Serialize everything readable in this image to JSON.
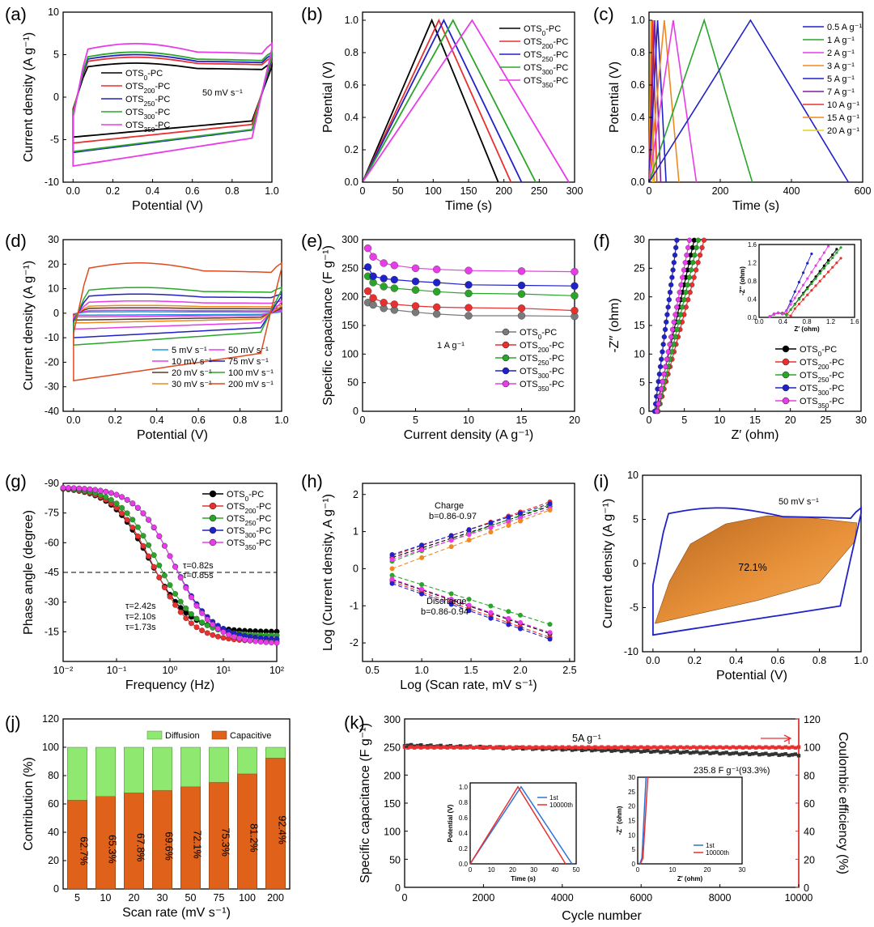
{
  "chart_data": [
    {
      "id": "a",
      "panel_label": "(a)",
      "type": "line",
      "xlabel": "Potential (V)",
      "ylabel": "Current density (A g⁻¹)",
      "xlim": [
        -0.05,
        1.0
      ],
      "ylim": [
        -10,
        10
      ],
      "xticks": [
        "0.0",
        "0.2",
        "0.4",
        "0.6",
        "0.8",
        "1.0"
      ],
      "yticks": [
        "-10",
        "-5",
        "0",
        "5",
        "10"
      ],
      "annotation": "50 mV s⁻¹",
      "series": [
        {
          "name": "OTS0-PC",
          "color": "#000000",
          "top": 4.0,
          "bottom": -4.7
        },
        {
          "name": "OTS200-PC",
          "color": "#e8312f",
          "top": 4.7,
          "bottom": -5.4
        },
        {
          "name": "OTS250-PC",
          "color": "#2121c8",
          "top": 5.0,
          "bottom": -6.5
        },
        {
          "name": "OTS300-PC",
          "color": "#2aa52a",
          "top": 5.3,
          "bottom": -6.4
        },
        {
          "name": "OTS350-PC",
          "color": "#e83ce8",
          "top": 6.3,
          "bottom": -8.1
        }
      ]
    },
    {
      "id": "b",
      "panel_label": "(b)",
      "type": "line",
      "xlabel": "Time (s)",
      "ylabel": "Potential (V)",
      "xlim": [
        0,
        300
      ],
      "ylim": [
        0,
        1.05
      ],
      "xticks": [
        "0",
        "50",
        "100",
        "150",
        "200",
        "250",
        "300"
      ],
      "yticks": [
        "0.0",
        "0.2",
        "0.4",
        "0.6",
        "0.8",
        "1.0"
      ],
      "series": [
        {
          "name": "OTS0-PC",
          "color": "#000000",
          "peak_t": 98,
          "end_t": 192
        },
        {
          "name": "OTS200-PC",
          "color": "#e8312f",
          "peak_t": 108,
          "end_t": 210
        },
        {
          "name": "OTS250-PC",
          "color": "#2121c8",
          "peak_t": 115,
          "end_t": 225
        },
        {
          "name": "OTS300-PC",
          "color": "#2aa52a",
          "peak_t": 128,
          "end_t": 245
        },
        {
          "name": "OTS350-PC",
          "color": "#e83ce8",
          "peak_t": 155,
          "end_t": 292
        }
      ]
    },
    {
      "id": "c",
      "panel_label": "(c)",
      "type": "line",
      "xlabel": "Time (s)",
      "ylabel": "Potential (V)",
      "xlim": [
        0,
        600
      ],
      "ylim": [
        0,
        1.05
      ],
      "xticks": [
        "0",
        "200",
        "400",
        "600"
      ],
      "yticks": [
        "0.0",
        "0.2",
        "0.4",
        "0.6",
        "0.8",
        "1.0"
      ],
      "series": [
        {
          "name": "0.5 A g⁻¹",
          "color": "#2121c8",
          "peak_t": 285,
          "end_t": 560
        },
        {
          "name": "1 A g⁻¹",
          "color": "#2aa52a",
          "peak_t": 155,
          "end_t": 290
        },
        {
          "name": "2 A g⁻¹",
          "color": "#e83ce8",
          "peak_t": 68,
          "end_t": 133
        },
        {
          "name": "3 A g⁻¹",
          "color": "#ee8a1e",
          "peak_t": 43,
          "end_t": 84
        },
        {
          "name": "5 A g⁻¹",
          "color": "#2121c8",
          "peak_t": 24,
          "end_t": 48
        },
        {
          "name": "7 A g⁻¹",
          "color": "#7a1fa0",
          "peak_t": 16,
          "end_t": 33
        },
        {
          "name": "10 A g⁻¹",
          "color": "#e8312f",
          "peak_t": 11,
          "end_t": 22
        },
        {
          "name": "15 A g⁻¹",
          "color": "#ee8a1e",
          "peak_t": 7,
          "end_t": 14
        },
        {
          "name": "20 A g⁻¹",
          "color": "#e8d21e",
          "peak_t": 5,
          "end_t": 10
        }
      ]
    },
    {
      "id": "d",
      "panel_label": "(d)",
      "type": "line",
      "xlabel": "Potential (V)",
      "ylabel": "Current density (A g⁻¹)",
      "xlim": [
        -0.05,
        1.0
      ],
      "ylim": [
        -40,
        30
      ],
      "xticks": [
        "0.0",
        "0.2",
        "0.4",
        "0.6",
        "0.8",
        "1.0"
      ],
      "yticks": [
        "-40",
        "-30",
        "-20",
        "-10",
        "0",
        "10",
        "20",
        "30"
      ],
      "series": [
        {
          "name": "5 mV s⁻¹",
          "color": "#1e9ae0",
          "top": 0.6,
          "bottom": -0.8
        },
        {
          "name": "10 mV s⁻¹",
          "color": "#e83ce8",
          "top": 1.2,
          "bottom": -1.5
        },
        {
          "name": "20 mV s⁻¹",
          "color": "#5a3a2a",
          "top": 2.2,
          "bottom": -2.8
        },
        {
          "name": "30 mV s⁻¹",
          "color": "#ee8a1e",
          "top": 3.2,
          "bottom": -4.0
        },
        {
          "name": "50 mV s⁻¹",
          "color": "#e83ce8",
          "top": 5.0,
          "bottom": -6.5
        },
        {
          "name": "75 mV s⁻¹",
          "color": "#2121c8",
          "top": 7.8,
          "bottom": -10.0
        },
        {
          "name": "100 mV s⁻¹",
          "color": "#2aa52a",
          "top": 10.5,
          "bottom": -13.0
        },
        {
          "name": "200 mV s⁻¹",
          "color": "#e04a1e",
          "top": 20.5,
          "bottom": -27.5
        }
      ]
    },
    {
      "id": "e",
      "panel_label": "(e)",
      "type": "line",
      "xlabel": "Current density (A g⁻¹)",
      "ylabel": "Specific capacitance (F g⁻¹)",
      "xlim": [
        0,
        20
      ],
      "ylim": [
        0,
        300
      ],
      "xticks": [
        "0",
        "5",
        "10",
        "15",
        "20"
      ],
      "yticks": [
        "0",
        "50",
        "100",
        "150",
        "200",
        "250",
        "300"
      ],
      "annotation": "1 A g⁻¹",
      "x": [
        0.5,
        1,
        2,
        3,
        5,
        7,
        10,
        15,
        20
      ],
      "series": [
        {
          "name": "OTS0-PC",
          "color": "#7a7a7a",
          "values": [
            190,
            186,
            180,
            177,
            173,
            170,
            167,
            167,
            166
          ]
        },
        {
          "name": "OTS200-PC",
          "color": "#e8312f",
          "values": [
            210,
            198,
            190,
            187,
            184,
            182,
            181,
            180,
            176
          ]
        },
        {
          "name": "OTS250-PC",
          "color": "#2aa52a",
          "values": [
            236,
            225,
            218,
            215,
            212,
            209,
            206,
            205,
            202
          ]
        },
        {
          "name": "OTS300-PC",
          "color": "#2121c8",
          "values": [
            252,
            236,
            232,
            230,
            227,
            225,
            221,
            220,
            219
          ]
        },
        {
          "name": "OTS350-PC",
          "color": "#e83ce8",
          "values": [
            285,
            270,
            259,
            255,
            250,
            248,
            246,
            245,
            244
          ]
        }
      ]
    },
    {
      "id": "f",
      "panel_label": "(f)",
      "type": "scatter",
      "xlabel": "Z′ (ohm)",
      "ylabel": "-Z′′ (ohm)",
      "xlim": [
        0,
        30
      ],
      "ylim": [
        0,
        30
      ],
      "xticks": [
        "0",
        "5",
        "10",
        "15",
        "20",
        "25",
        "30"
      ],
      "yticks": [
        "0",
        "5",
        "10",
        "15",
        "20",
        "25",
        "30"
      ],
      "inset": {
        "xlabel": "Z′ (ohm)",
        "ylabel": "-Z′′ (ohm)",
        "xticks": [
          "0.0",
          "0.4",
          "0.8",
          "1.2",
          "1.6"
        ],
        "yticks": [
          "0.0",
          "0.4",
          "0.8",
          "1.2",
          "1.6"
        ]
      },
      "series": [
        {
          "name": "OTS0-PC",
          "color": "#000000",
          "rs": 0.25,
          "knee": 0.7,
          "slope": 5.5
        },
        {
          "name": "OTS200-PC",
          "color": "#e8312f",
          "rs": 0.3,
          "knee": 0.9,
          "slope": 4.6
        },
        {
          "name": "OTS250-PC",
          "color": "#2aa52a",
          "rs": 0.25,
          "knee": 0.8,
          "slope": 5.2
        },
        {
          "name": "OTS300-PC",
          "color": "#2121c8",
          "rs": 0.2,
          "knee": 0.35,
          "slope": 9.5
        },
        {
          "name": "OTS350-PC",
          "color": "#e83ce8",
          "rs": 0.2,
          "knee": 0.6,
          "slope": 6.5
        }
      ]
    },
    {
      "id": "g",
      "panel_label": "(g)",
      "type": "scatter",
      "xlabel": "Frequency (Hz)",
      "ylabel": "Phase angle (degree)",
      "xscale": "log",
      "xlim": [
        0.01,
        100
      ],
      "ylim": [
        -90,
        0
      ],
      "xticks": [
        "10⁻²",
        "10⁻¹",
        "10⁰",
        "10¹",
        "10²"
      ],
      "yticks": [
        "-90",
        "-75",
        "-60",
        "-45",
        "-30",
        "-15"
      ],
      "annotations": [
        "τ=0.82s",
        "τ=0.85s",
        "τ=2.42s",
        "τ=2.10s",
        "τ=1.73s"
      ],
      "series": [
        {
          "name": "OTS0-PC",
          "color": "#000000",
          "f45": 0.413,
          "hf": -15
        },
        {
          "name": "OTS200-PC",
          "color": "#e8312f",
          "f45": 0.476,
          "hf": -10
        },
        {
          "name": "OTS250-PC",
          "color": "#2aa52a",
          "f45": 0.578,
          "hf": -13
        },
        {
          "name": "OTS300-PC",
          "color": "#2121c8",
          "f45": 1.176,
          "hf": -11
        },
        {
          "name": "OTS350-PC",
          "color": "#e83ce8",
          "f45": 1.22,
          "hf": -9
        }
      ]
    },
    {
      "id": "h",
      "panel_label": "(h)",
      "type": "scatter",
      "xlabel": "Log (Scan rate, mV s⁻¹)",
      "ylabel": "Log (Current density, A g⁻¹)",
      "xlim": [
        0.4,
        2.55
      ],
      "ylim": [
        -2.5,
        2.3
      ],
      "xticks": [
        "0.5",
        "1.0",
        "1.5",
        "2.0",
        "2.5"
      ],
      "yticks": [
        "-2",
        "-1",
        "0",
        "1",
        "2"
      ],
      "charge_label": "Charge",
      "charge_b": "b=0.86-0.97",
      "discharge_label": "Discharge",
      "discharge_b": "b=0.86-0.94",
      "x": [
        0.7,
        1.0,
        1.3,
        1.48,
        1.7,
        1.88,
        2.0,
        2.3
      ],
      "series": [
        {
          "name": "OTS0-PC charge",
          "color": "#000000",
          "y0": 0.3,
          "y1": 1.68
        },
        {
          "name": "OTS200-PC charge",
          "color": "#e8312f",
          "y0": 0.35,
          "y1": 1.8
        },
        {
          "name": "OTS250-PC charge",
          "color": "#2aa52a",
          "y0": 0.2,
          "y1": 1.72
        },
        {
          "name": "OTS300-PC charge",
          "color": "#2121c8",
          "y0": 0.38,
          "y1": 1.75
        },
        {
          "name": "OTS350-PC charge",
          "color": "#e83ce8",
          "y0": 0.25,
          "y1": 1.62
        },
        {
          "name": "orange charge",
          "color": "#ee8a1e",
          "y0": 0.0,
          "y1": 1.58
        },
        {
          "name": "OTS0-PC discharge",
          "color": "#000000",
          "y0": -0.3,
          "y1": -1.75
        },
        {
          "name": "OTS200-PC discharge",
          "color": "#e8312f",
          "y0": -0.35,
          "y1": -1.85
        },
        {
          "name": "OTS250-PC discharge",
          "color": "#2aa52a",
          "y0": -0.18,
          "y1": -1.5
        },
        {
          "name": "OTS300-PC discharge",
          "color": "#2121c8",
          "y0": -0.4,
          "y1": -1.9
        },
        {
          "name": "OTS350-PC discharge",
          "color": "#e83ce8",
          "y0": -0.28,
          "y1": -1.72
        }
      ]
    },
    {
      "id": "i",
      "panel_label": "(i)",
      "type": "area",
      "xlabel": "Potential (V)",
      "ylabel": "Current density (A g⁻¹)",
      "xlim": [
        -0.05,
        1.0
      ],
      "ylim": [
        -10,
        10
      ],
      "xticks": [
        "0.0",
        "0.2",
        "0.4",
        "0.6",
        "0.8",
        "1.0"
      ],
      "yticks": [
        "-10",
        "-5",
        "0",
        "5",
        "10"
      ],
      "annotation": "50 mV s⁻¹",
      "capacitive_label": "72.1%",
      "cv_top": 6.3,
      "cv_bottom": -8.1
    },
    {
      "id": "j",
      "panel_label": "(j)",
      "type": "bar",
      "xlabel": "Scan rate (mV s⁻¹)",
      "ylabel": "Contribution (%)",
      "ylim": [
        0,
        120
      ],
      "yticks": [
        "0",
        "20",
        "40",
        "60",
        "80",
        "100",
        "120"
      ],
      "categories": [
        "5",
        "10",
        "20",
        "30",
        "50",
        "75",
        "100",
        "200"
      ],
      "series": [
        {
          "name": "Capacitive",
          "color": "#e0621a",
          "values": [
            62.7,
            65.3,
            67.8,
            69.6,
            72.1,
            75.3,
            81.2,
            92.4
          ]
        },
        {
          "name": "Diffusion",
          "color": "#8fe870",
          "values": [
            37.3,
            34.7,
            32.2,
            30.4,
            27.9,
            24.7,
            18.8,
            7.6
          ]
        }
      ],
      "bar_labels": [
        "62.7%",
        "65.3%",
        "67.8%",
        "69.6%",
        "72.1%",
        "75.3%",
        "81.2%",
        "92.4%"
      ]
    },
    {
      "id": "k",
      "panel_label": "(k)",
      "type": "scatter",
      "xlabel": "Cycle number",
      "ylabel": "Specific capacitance (F g⁻¹)",
      "ylabel2": "Coulombic efficiency (%)",
      "xlim": [
        0,
        10000
      ],
      "ylim": [
        0,
        300
      ],
      "ylim2": [
        0,
        120
      ],
      "xticks": [
        "0",
        "2000",
        "4000",
        "6000",
        "8000",
        "10000"
      ],
      "yticks": [
        "0",
        "50",
        "100",
        "150",
        "200",
        "250",
        "300"
      ],
      "yticks2": [
        "0",
        "20",
        "40",
        "60",
        "80",
        "100",
        "120"
      ],
      "annotation": "5A g⁻¹",
      "retention_label": "235.8 F g⁻¹(93.3%)",
      "capacitance_start": 253,
      "capacitance_end": 235.8,
      "efficiency": 100,
      "inset1": {
        "xlabel": "Time (s)",
        "ylabel": "Potential (V)",
        "xticks": [
          "0",
          "10",
          "20",
          "30",
          "40",
          "50"
        ],
        "yticks": [
          "0.0",
          "0.2",
          "0.4",
          "0.6",
          "0.8",
          "1.0"
        ],
        "legend": [
          "1st",
          "10000th"
        ]
      },
      "inset2": {
        "xlabel": "Z′ (ohm)",
        "ylabel": "-Z′′ (ohm)",
        "xticks": [
          "0",
          "10",
          "20",
          "30"
        ],
        "yticks": [
          "0",
          "5",
          "10",
          "15",
          "20",
          "25",
          "30"
        ],
        "legend": [
          "1st",
          "10000th"
        ]
      }
    }
  ]
}
